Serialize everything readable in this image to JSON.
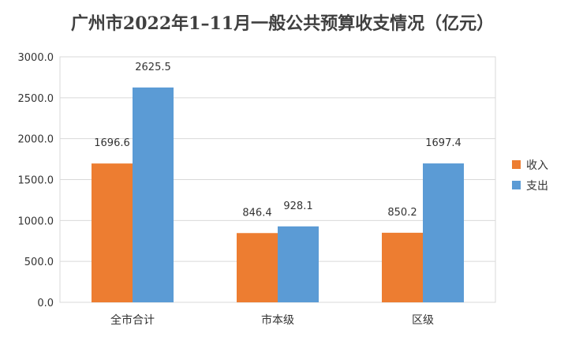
{
  "chart_data": {
    "type": "bar",
    "title": "广州市2022年1–11月一般公共预算收支情况（亿元）",
    "categories": [
      "全市合计",
      "市本级",
      "区级"
    ],
    "series": [
      {
        "name": "收入",
        "values": [
          1696.6,
          846.4,
          850.2
        ],
        "color": "#ED7D31",
        "labels": [
          "1696.6",
          "846.4",
          "850.2"
        ]
      },
      {
        "name": "支出",
        "values": [
          2625.5,
          928.1,
          1697.4
        ],
        "color": "#5B9BD5",
        "labels": [
          "2625.5",
          "928.1",
          "1697.4"
        ]
      }
    ],
    "ylim": [
      0,
      3000
    ],
    "yticks": [
      "0.0",
      "500.0",
      "1000.0",
      "1500.0",
      "2000.0",
      "2500.0",
      "3000.0"
    ],
    "grid": true,
    "legend": "right"
  }
}
